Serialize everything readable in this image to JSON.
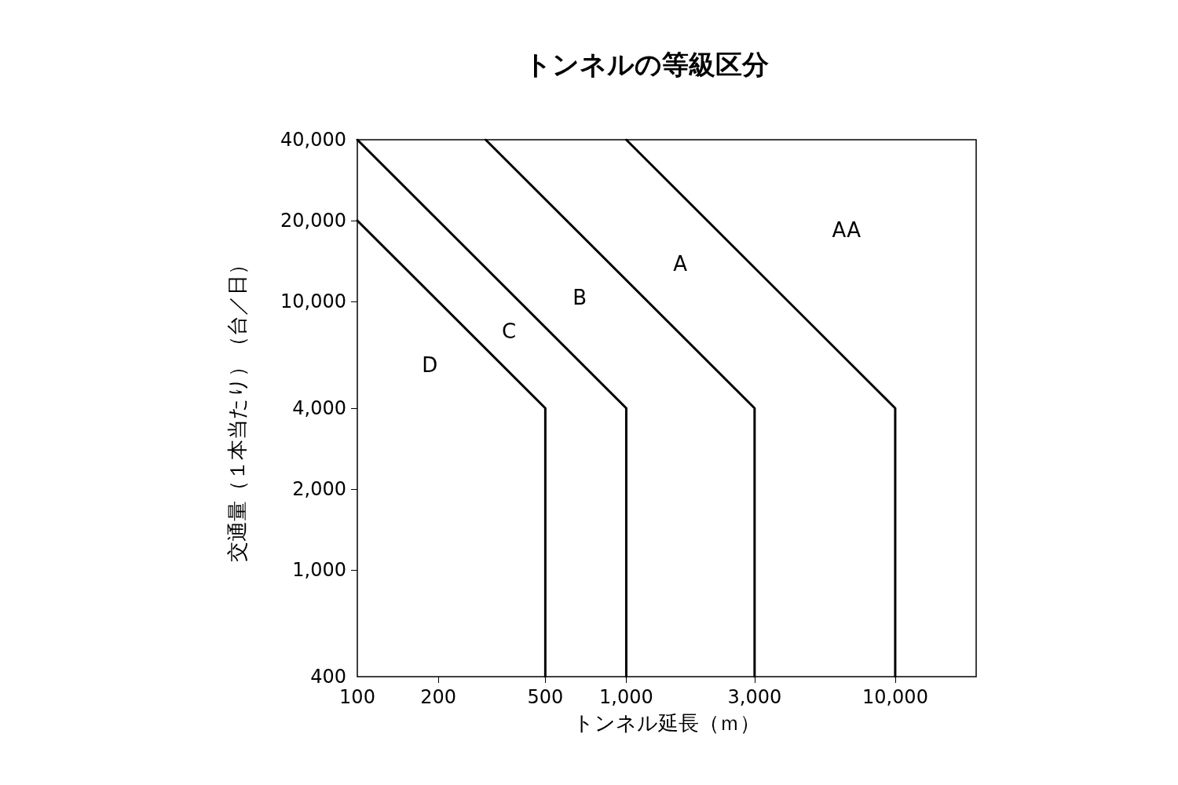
{
  "chart_data": {
    "type": "line",
    "title": "トンネルの等級区分",
    "xlabel": "トンネル延長（ｍ）",
    "ylabel": "交通量（１本当たり）（台／日）",
    "log": "xy",
    "grid": false,
    "marker": "none",
    "line_style": "solid",
    "xlim": [
      100,
      20000
    ],
    "ylim": [
      400,
      40000
    ],
    "xticks": [
      100,
      200,
      500,
      {
        "value": 1000,
        "label": "1,000"
      },
      {
        "value": 3000,
        "label": "3,000"
      },
      {
        "value": 10000,
        "label": "10,000"
      }
    ],
    "yticks": [
      400,
      {
        "value": 1000,
        "label": "1,000"
      },
      {
        "value": 2000,
        "label": "2,000"
      },
      {
        "value": 4000,
        "label": "4,000"
      },
      {
        "value": 10000,
        "label": "10,000"
      },
      {
        "value": 20000,
        "label": "20,000"
      },
      {
        "value": 40000,
        "label": "40,000"
      }
    ],
    "series": [
      {
        "color": "#000000",
        "x": [
          100,
          500,
          500
        ],
        "values": [
          20000,
          4000,
          400
        ]
      },
      {
        "color": "#000000",
        "x": [
          100,
          1000,
          1000
        ],
        "values": [
          40000,
          4000,
          400
        ]
      },
      {
        "color": "#000000",
        "x": [
          300,
          3000,
          3000
        ],
        "values": [
          40000,
          4000,
          400
        ]
      },
      {
        "color": "#000000",
        "x": [
          1000,
          10000,
          10000
        ],
        "values": [
          40000,
          4000,
          400
        ]
      }
    ],
    "annotations": [
      "D",
      "C",
      "B",
      "A",
      "AA"
    ]
  }
}
